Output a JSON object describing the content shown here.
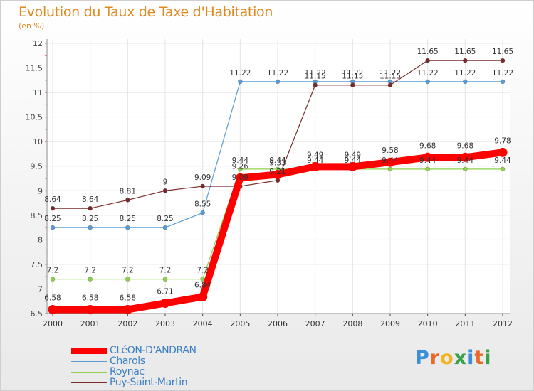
{
  "chart_data": {
    "type": "line",
    "title": "Evolution du Taux de Taxe d'Habitation",
    "subtitle": "(en %)",
    "x": [
      "2000",
      "2001",
      "2002",
      "2003",
      "2004",
      "2005",
      "2006",
      "2007",
      "2008",
      "2009",
      "2010",
      "2011",
      "2012"
    ],
    "ylim": [
      6.5,
      12
    ],
    "yticks": [
      "6.5",
      "7",
      "7.5",
      "8",
      "8.5",
      "9",
      "9.5",
      "10",
      "10.5",
      "11",
      "11.5",
      "12"
    ],
    "grid": true,
    "legend_position": "bottom-left",
    "series": [
      {
        "name": "CLéON-D'ANDRAN",
        "color": "#ff0000",
        "values": [
          6.58,
          6.58,
          6.58,
          6.71,
          6.84,
          9.26,
          9.33,
          9.49,
          9.49,
          9.58,
          9.68,
          9.68,
          9.78
        ]
      },
      {
        "name": "Charols",
        "color": "#5b9bd5",
        "values": [
          8.25,
          8.25,
          8.25,
          8.25,
          8.55,
          11.22,
          11.22,
          11.22,
          11.22,
          11.22,
          11.22,
          11.22,
          11.22
        ]
      },
      {
        "name": "Roynac",
        "color": "#8fd14f",
        "values": [
          7.2,
          7.2,
          7.2,
          7.2,
          7.2,
          9.44,
          9.44,
          9.44,
          9.44,
          9.44,
          9.44,
          9.44,
          9.44
        ]
      },
      {
        "name": "Puy-Saint-Martin",
        "color": "#7a2a2a",
        "values": [
          8.64,
          8.64,
          8.81,
          9,
          9.09,
          9.09,
          9.21,
          11.15,
          11.15,
          11.15,
          11.65,
          11.65,
          11.65
        ]
      }
    ],
    "data_labels": [
      [
        "6.58",
        "6.58",
        "6.58",
        "6.71",
        "6.84",
        "9.26",
        "9.33",
        "9.49",
        "9.49",
        "9.58",
        "9.68",
        "9.68",
        "9.78"
      ],
      [
        "8.25",
        "8.25",
        "8.25",
        "8.25",
        "8.55",
        "11.22",
        "11.22",
        "11.22",
        "11.22",
        "11.22",
        "11.22",
        "11.22",
        "11.22"
      ],
      [
        "7.2",
        "7.2",
        "7.2",
        "7.2",
        "7.2",
        "9.44",
        "9.44",
        "9.44",
        "9.44",
        "9.44",
        "9.44",
        "9.44",
        "9.44"
      ],
      [
        "8.64",
        "8.64",
        "8.81",
        "9",
        "9.09",
        "9.09",
        "9.21",
        "11.15",
        "11.15",
        "11.15",
        "11.65",
        "11.65",
        "11.65"
      ]
    ]
  },
  "logo": {
    "text": "Proxiti"
  }
}
